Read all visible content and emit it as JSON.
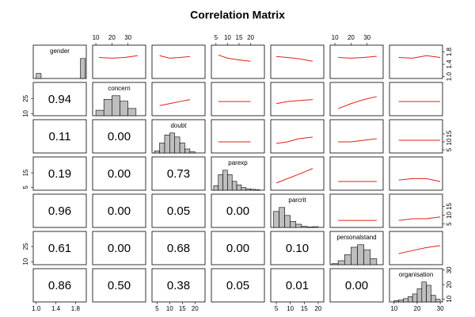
{
  "chart_data": {
    "type": "pairs",
    "title": "Correlation Matrix",
    "line_color": "#e0201b",
    "hist_color": "#bebebe",
    "variables": [
      {
        "name": "gender",
        "lim": [
          0.94,
          2.02
        ],
        "xticks": [
          {
            "value": 1,
            "label": "1.0"
          },
          1.4,
          1.8
        ],
        "yticks": [
          {
            "value": 1,
            "label": "1.0"
          },
          1.4,
          1.8
        ],
        "grid_x": [
          1,
          1.3,
          1.6,
          1.9
        ],
        "hist": {
          "bins": [
            1,
            1.1,
            1.2,
            1.3,
            1.4,
            1.5,
            1.6,
            1.7,
            1.8,
            1.9,
            2.0
          ],
          "counts": [
            30,
            0,
            0,
            0,
            0,
            0,
            0,
            0,
            0,
            120
          ]
        }
      },
      {
        "name": "concern",
        "lim": [
          8,
          41
        ],
        "xticks": [
          10,
          20,
          30
        ],
        "yticks": [
          10,
          25
        ],
        "grid_x": [
          12,
          20,
          28,
          36
        ],
        "hist": {
          "bins": [
            10,
            15,
            20,
            25,
            30,
            35
          ],
          "counts": [
            15,
            45,
            55,
            40,
            20
          ]
        }
      },
      {
        "name": "doubt",
        "lim": [
          3,
          24
        ],
        "xticks": [
          5,
          10,
          15,
          20
        ],
        "yticks": [
          5,
          10,
          15
        ],
        "grid_x": [
          6,
          10,
          14,
          18
        ],
        "hist": {
          "bins": [
            4,
            6,
            8,
            10,
            12,
            14,
            16,
            18,
            20
          ],
          "counts": [
            5,
            25,
            45,
            50,
            40,
            25,
            10,
            3
          ]
        }
      },
      {
        "name": "parexp",
        "lim": [
          3,
          26
        ],
        "xticks": [
          5,
          10,
          15,
          20
        ],
        "yticks": [
          5,
          15
        ],
        "grid_x": [
          6,
          10,
          14,
          20
        ],
        "hist": {
          "bins": [
            4,
            6,
            8,
            10,
            12,
            14,
            16,
            18,
            20,
            22,
            24
          ],
          "counts": [
            10,
            35,
            45,
            35,
            20,
            12,
            6,
            3,
            2,
            1
          ]
        }
      },
      {
        "name": "parcrit",
        "lim": [
          3,
          22
        ],
        "xticks": [
          5,
          10,
          15,
          20
        ],
        "yticks": [
          5,
          10,
          15
        ],
        "grid_x": [
          5,
          9,
          13,
          18
        ],
        "hist": {
          "bins": [
            4,
            6,
            8,
            10,
            12,
            14,
            16,
            18,
            20
          ],
          "counts": [
            40,
            50,
            30,
            15,
            8,
            3,
            1,
            2
          ]
        }
      },
      {
        "name": "personalstand",
        "lim": [
          7,
          40
        ],
        "xticks": [
          10,
          20,
          30
        ],
        "yticks": [
          10,
          25
        ],
        "grid_x": [
          12,
          20,
          28,
          36
        ],
        "hist": {
          "bins": [
            8,
            12,
            16,
            20,
            24,
            28,
            32,
            36
          ],
          "counts": [
            2,
            8,
            20,
            35,
            40,
            30,
            12
          ]
        }
      },
      {
        "name": "organisation",
        "lim": [
          8,
          31
        ],
        "xticks": [
          10,
          20,
          30
        ],
        "yticks": [
          10,
          20,
          30
        ],
        "grid_x": [
          12,
          18,
          24,
          30
        ],
        "hist": {
          "bins": [
            10,
            12,
            14,
            16,
            18,
            20,
            22,
            24,
            26,
            28,
            30
          ],
          "counts": [
            2,
            3,
            5,
            8,
            12,
            20,
            30,
            25,
            10,
            4
          ]
        }
      }
    ],
    "smooth": [
      [
        null,
        [
          1.62,
          1.6,
          1.62,
          1.68
        ],
        [
          1.68,
          1.6,
          1.62,
          1.65
        ],
        [
          1.7,
          1.6,
          1.55,
          1.5
        ],
        [
          1.65,
          1.62,
          1.58,
          1.5
        ],
        [
          1.62,
          1.6,
          1.62,
          1.66
        ],
        [
          1.62,
          1.6,
          1.68,
          1.62
        ]
      ],
      [
        null,
        null,
        [
          18,
          20,
          22,
          24
        ],
        [
          22,
          22,
          22,
          22
        ],
        [
          20,
          22,
          23,
          24
        ],
        [
          15,
          20,
          24,
          27
        ],
        [
          22,
          22,
          22,
          22
        ]
      ],
      [
        null,
        null,
        null,
        [
          10,
          10,
          10,
          10
        ],
        [
          9,
          10,
          12,
          13
        ],
        [
          10,
          10,
          11,
          12
        ],
        [
          11,
          11,
          11,
          11
        ]
      ],
      [
        null,
        null,
        null,
        null,
        [
          8,
          11,
          14,
          18
        ],
        [
          9,
          9,
          9,
          9
        ],
        [
          10,
          11,
          11,
          9
        ]
      ],
      [
        null,
        null,
        null,
        null,
        null,
        [
          7,
          7,
          7,
          7
        ],
        [
          7,
          8,
          8,
          9
        ]
      ],
      [
        null,
        null,
        null,
        null,
        null,
        null,
        [
          18,
          21,
          24,
          26
        ]
      ],
      [
        null,
        null,
        null,
        null,
        null,
        null,
        null
      ]
    ],
    "cells": [
      [
        null,
        null,
        null,
        null,
        null,
        null,
        null
      ],
      [
        "0.94",
        null,
        null,
        null,
        null,
        null,
        null
      ],
      [
        "0.11",
        "0.00",
        null,
        null,
        null,
        null,
        null
      ],
      [
        "0.19",
        "0.00",
        "0.73",
        null,
        null,
        null,
        null
      ],
      [
        "0.96",
        "0.00",
        "0.05",
        "0.00",
        null,
        null,
        null
      ],
      [
        "0.61",
        "0.00",
        "0.68",
        "0.00",
        "0.10",
        null,
        null
      ],
      [
        "0.86",
        "0.50",
        "0.38",
        "0.05",
        "0.01",
        "0.00",
        null
      ]
    ]
  }
}
